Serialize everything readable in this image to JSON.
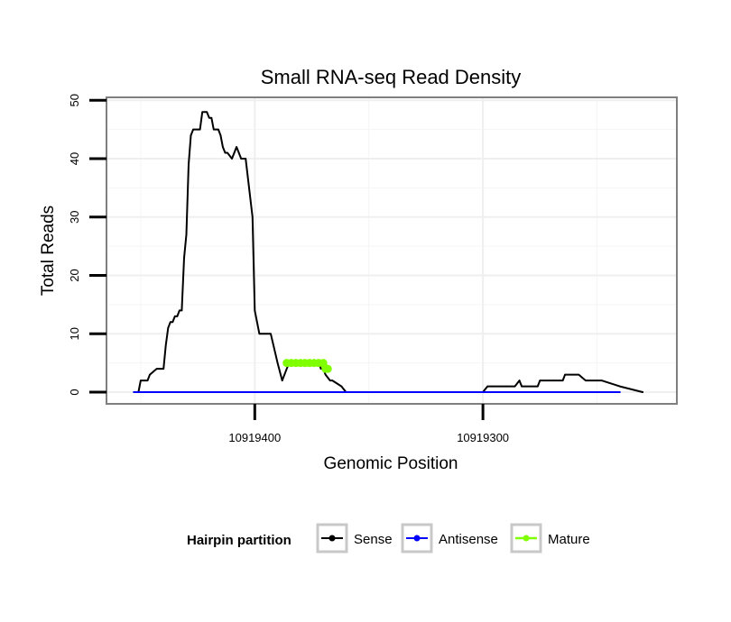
{
  "chart_data": {
    "type": "line",
    "title": "Small RNA-seq Read Density",
    "xlabel": "Genomic Position",
    "ylabel": "Total Reads",
    "x_reversed": true,
    "xlim": [
      10919465,
      10919215
    ],
    "ylim": [
      -2,
      50.5
    ],
    "x_ticks": [
      10919400,
      10919300
    ],
    "x_tick_labels": [
      "10919400",
      "10919300"
    ],
    "y_ticks": [
      0,
      10,
      20,
      30,
      40,
      50
    ],
    "y_tick_labels": [
      "0",
      "10",
      "20",
      "30",
      "40",
      "50"
    ],
    "grid": true,
    "legend": {
      "title": "Hairpin partition",
      "position": "bottom",
      "entries": [
        {
          "label": "Sense",
          "color": "#000000"
        },
        {
          "label": "Antisense",
          "color": "#0000ff"
        },
        {
          "label": "Mature",
          "color": "#7fff00"
        }
      ]
    },
    "series": [
      {
        "name": "Sense",
        "color": "#000000",
        "x": [
          10919453,
          10919451,
          10919450,
          10919447,
          10919446,
          10919443,
          10919442,
          10919440,
          10919439,
          10919438,
          10919437,
          10919436,
          10919435,
          10919434,
          10919433,
          10919432,
          10919431,
          10919430,
          10919429,
          10919428,
          10919427,
          10919426,
          10919424,
          10919423,
          10919421,
          10919420,
          10919419,
          10919418,
          10919417,
          10919416,
          10919415,
          10919414,
          10919413,
          10919412,
          10919410,
          10919409,
          10919408,
          10919406,
          10919405,
          10919404,
          10919401,
          10919400,
          10919398,
          10919397,
          10919396,
          10919395,
          10919393,
          10919390,
          10919388,
          10919385,
          10919384,
          10919380,
          10919378,
          10919376,
          10919374,
          10919372,
          10919371,
          10919370,
          10919369,
          10919367,
          10919366,
          10919362,
          10919360,
          10919340,
          10919320,
          10919317,
          10919300,
          10919298,
          10919296,
          10919295,
          10919292,
          10919290,
          10919286,
          10919284,
          10919283,
          10919276,
          10919275,
          10919271,
          10919269,
          10919265,
          10919264,
          10919260,
          10919258,
          10919255,
          10919254,
          10919250,
          10919248,
          10919240,
          10919230
        ],
        "y": [
          0,
          0,
          2,
          2,
          3,
          4,
          4,
          4,
          8,
          11,
          12,
          12,
          13,
          13,
          14,
          14,
          23,
          27,
          39,
          44,
          45,
          45,
          45,
          48,
          48,
          47,
          47,
          45,
          45,
          45,
          44,
          42,
          41,
          41,
          40,
          41,
          42,
          40,
          40,
          40,
          30,
          14,
          10,
          10,
          10,
          10,
          10,
          5,
          2,
          5,
          5,
          5,
          5,
          5,
          5,
          5,
          4,
          4,
          3,
          2,
          2,
          1,
          0,
          0,
          0,
          0,
          0,
          1,
          1,
          1,
          1,
          1,
          1,
          2,
          1,
          1,
          2,
          2,
          2,
          2,
          3,
          3,
          3,
          2,
          2,
          2,
          2,
          1,
          0
        ]
      },
      {
        "name": "Antisense",
        "color": "#0000ff",
        "x": [
          10919453,
          10919240
        ],
        "y": [
          0,
          0
        ]
      },
      {
        "name": "Mature",
        "color": "#7fff00",
        "x": [
          10919386,
          10919384,
          10919382,
          10919380,
          10919378,
          10919376,
          10919374,
          10919372,
          10919370,
          10919369,
          10919368
        ],
        "y": [
          5,
          5,
          5,
          5,
          5,
          5,
          5,
          5,
          5,
          4,
          4
        ]
      }
    ]
  }
}
